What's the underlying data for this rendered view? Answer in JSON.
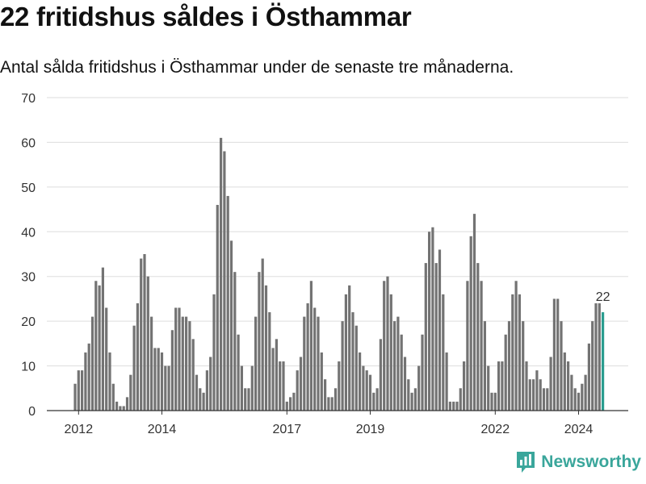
{
  "header": {
    "title": "22 fritidshus såldes i Östhammar",
    "subtitle": "Antal sålda fritidshus i Östhammar under de senaste tre månaderna."
  },
  "brand": {
    "name": "Newsworthy",
    "icon": "newsworthy-logo-icon",
    "color": "#3aa69b"
  },
  "chart_data": {
    "type": "bar",
    "title": "22 fritidshus såldes i Östhammar",
    "subtitle": "Antal sålda fritidshus i Östhammar under de senaste tre månaderna.",
    "x_start": "2011-12",
    "frequency": "monthly",
    "xticks": [
      "2012",
      "2014",
      "2017",
      "2019",
      "2022",
      "2024"
    ],
    "yticks": [
      0,
      10,
      20,
      30,
      40,
      50,
      60,
      70
    ],
    "ylim": [
      0,
      70
    ],
    "grid": true,
    "bar_color": "#737373",
    "highlight_color": "#2a9d8f",
    "highlight_label": "22",
    "values": [
      6,
      9,
      9,
      13,
      15,
      21,
      29,
      28,
      32,
      23,
      13,
      6,
      2,
      1,
      1,
      3,
      8,
      19,
      24,
      34,
      35,
      30,
      21,
      14,
      14,
      13,
      10,
      10,
      18,
      23,
      23,
      21,
      21,
      20,
      16,
      8,
      5,
      4,
      9,
      12,
      26,
      46,
      61,
      58,
      48,
      38,
      31,
      17,
      10,
      5,
      5,
      10,
      21,
      31,
      34,
      28,
      22,
      14,
      16,
      11,
      11,
      2,
      3,
      4,
      9,
      12,
      21,
      24,
      29,
      23,
      21,
      13,
      7,
      3,
      3,
      5,
      11,
      20,
      26,
      28,
      22,
      19,
      13,
      10,
      9,
      8,
      4,
      5,
      16,
      29,
      30,
      26,
      20,
      21,
      17,
      12,
      7,
      4,
      5,
      10,
      17,
      33,
      40,
      41,
      33,
      36,
      26,
      13,
      2,
      2,
      2,
      5,
      11,
      29,
      39,
      44,
      33,
      29,
      20,
      10,
      4,
      4,
      11,
      11,
      17,
      20,
      26,
      29,
      26,
      20,
      11,
      7,
      7,
      9,
      7,
      5,
      5,
      12,
      25,
      25,
      20,
      13,
      11,
      8,
      5,
      4,
      6,
      8,
      15,
      20,
      24,
      24,
      22
    ]
  }
}
